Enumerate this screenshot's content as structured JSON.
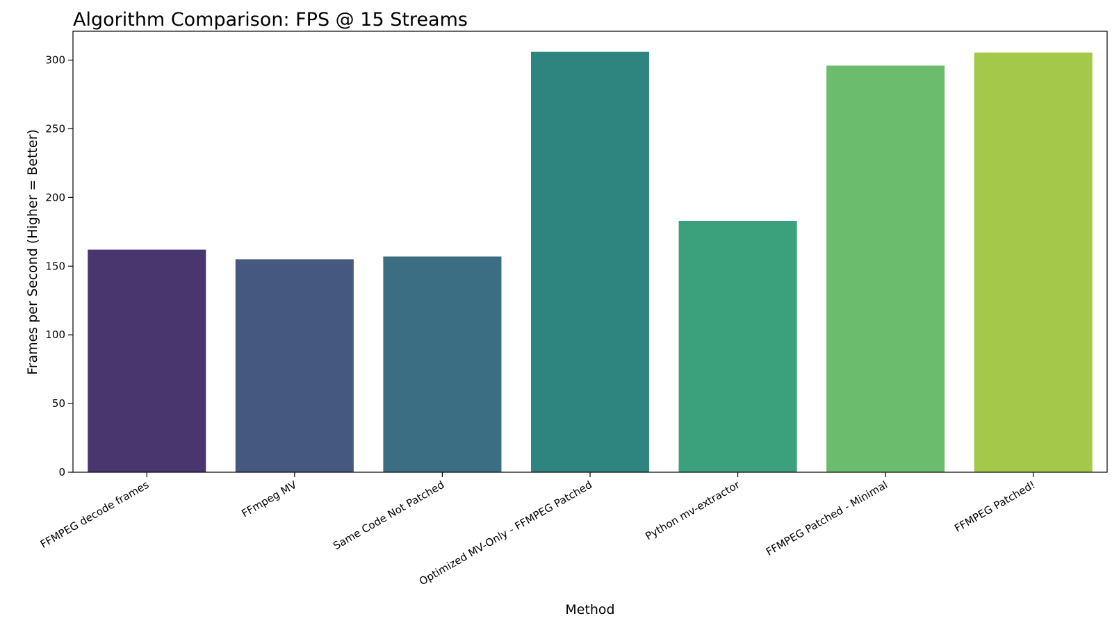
{
  "chart_data": {
    "type": "bar",
    "title": "Algorithm Comparison: FPS @ 15 Streams",
    "xlabel": "Method",
    "ylabel": "Frames per Second (Higher = Better)",
    "categories": [
      "FFMPEG decode frames",
      "FFmpeg MV",
      "Same Code Not Patched",
      "Optimized MV-Only - FFMPEG Patched",
      "Python mv-extractor",
      "FFMPEG Patched - Minimal",
      "FFMPEG Patched!"
    ],
    "values": [
      162,
      155,
      157,
      306,
      183,
      296,
      305.5
    ],
    "colors": [
      "#4a366f",
      "#45587f",
      "#3b6e82",
      "#2e847e",
      "#3ba17c",
      "#6bbc6c",
      "#a3c84a"
    ],
    "ylim": [
      0,
      321
    ],
    "yticks": [
      0,
      50,
      100,
      150,
      200,
      250,
      300
    ],
    "grid": false,
    "legend": "none"
  }
}
